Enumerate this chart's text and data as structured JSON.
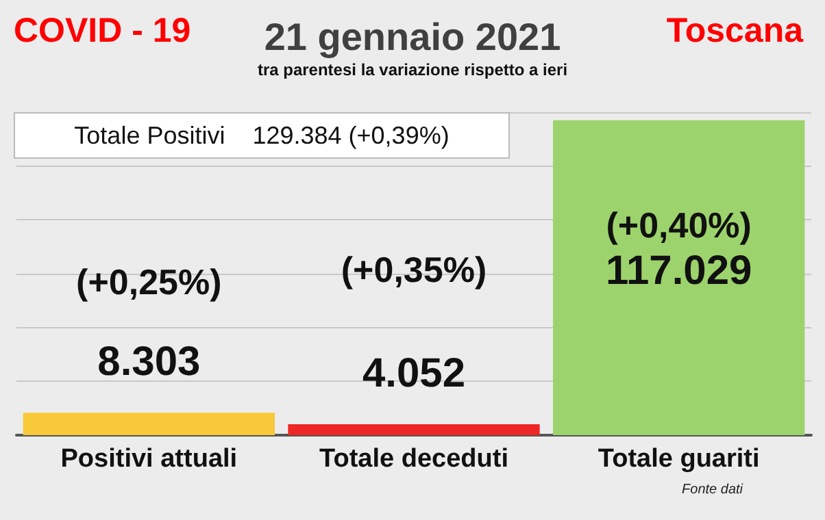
{
  "chart_data": {
    "type": "bar",
    "title": "21 gennaio 2021",
    "subtitle": "tra parentesi la variazione rispetto a ieri",
    "categories": [
      "Positivi attuali",
      "Totale deceduti",
      "Totale guariti"
    ],
    "values": [
      8303,
      4052,
      117029
    ],
    "colors": [
      "#f9c93a",
      "#ee2626",
      "#9dd36c"
    ],
    "value_labels": [
      "8.303",
      "4.052",
      "117.029"
    ],
    "ylim": [
      0,
      120000
    ],
    "yticks": [
      {
        "value": 0,
        "label": null
      },
      {
        "value": 20000,
        "label": null
      },
      {
        "value": 40000,
        "label": null
      },
      {
        "value": 60000,
        "label": null
      },
      {
        "value": 80000,
        "label": null
      },
      {
        "value": 100000,
        "label": null
      },
      {
        "value": 120000,
        "label": null
      }
    ],
    "grid": "y",
    "annotations": [
      "COVID - 19",
      "Toscana",
      "Totale Positivi    129.384 (+0,39%)",
      "(+0,25%)",
      "(+0,35%)",
      "(+0,40%)",
      "Fonte dati"
    ]
  }
}
